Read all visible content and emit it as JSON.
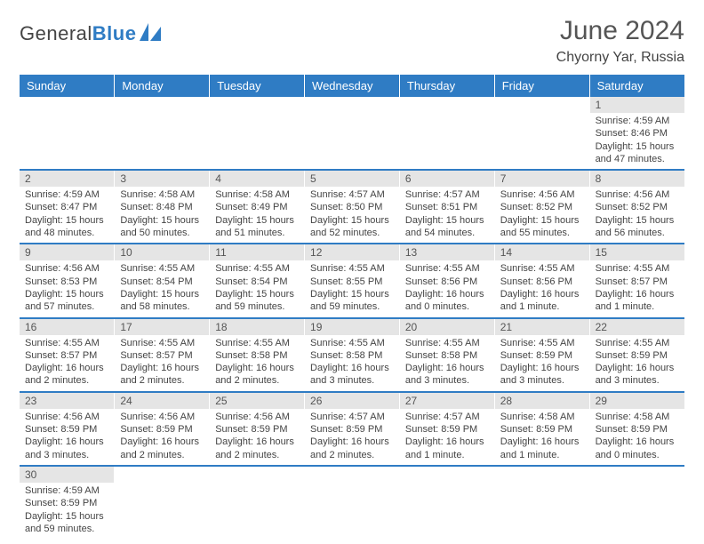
{
  "logo": {
    "word1": "General",
    "word2": "Blue"
  },
  "title": "June 2024",
  "location": "Chyorny Yar, Russia",
  "colors": {
    "accent": "#2f7cc4",
    "header_bg": "#2f7cc4",
    "daynum_bg": "#e5e5e5"
  },
  "weekdays": [
    "Sunday",
    "Monday",
    "Tuesday",
    "Wednesday",
    "Thursday",
    "Friday",
    "Saturday"
  ],
  "weeks": [
    [
      {
        "n": "",
        "sr": "",
        "ss": "",
        "dl": ""
      },
      {
        "n": "",
        "sr": "",
        "ss": "",
        "dl": ""
      },
      {
        "n": "",
        "sr": "",
        "ss": "",
        "dl": ""
      },
      {
        "n": "",
        "sr": "",
        "ss": "",
        "dl": ""
      },
      {
        "n": "",
        "sr": "",
        "ss": "",
        "dl": ""
      },
      {
        "n": "",
        "sr": "",
        "ss": "",
        "dl": ""
      },
      {
        "n": "1",
        "sr": "Sunrise: 4:59 AM",
        "ss": "Sunset: 8:46 PM",
        "dl": "Daylight: 15 hours and 47 minutes."
      }
    ],
    [
      {
        "n": "2",
        "sr": "Sunrise: 4:59 AM",
        "ss": "Sunset: 8:47 PM",
        "dl": "Daylight: 15 hours and 48 minutes."
      },
      {
        "n": "3",
        "sr": "Sunrise: 4:58 AM",
        "ss": "Sunset: 8:48 PM",
        "dl": "Daylight: 15 hours and 50 minutes."
      },
      {
        "n": "4",
        "sr": "Sunrise: 4:58 AM",
        "ss": "Sunset: 8:49 PM",
        "dl": "Daylight: 15 hours and 51 minutes."
      },
      {
        "n": "5",
        "sr": "Sunrise: 4:57 AM",
        "ss": "Sunset: 8:50 PM",
        "dl": "Daylight: 15 hours and 52 minutes."
      },
      {
        "n": "6",
        "sr": "Sunrise: 4:57 AM",
        "ss": "Sunset: 8:51 PM",
        "dl": "Daylight: 15 hours and 54 minutes."
      },
      {
        "n": "7",
        "sr": "Sunrise: 4:56 AM",
        "ss": "Sunset: 8:52 PM",
        "dl": "Daylight: 15 hours and 55 minutes."
      },
      {
        "n": "8",
        "sr": "Sunrise: 4:56 AM",
        "ss": "Sunset: 8:52 PM",
        "dl": "Daylight: 15 hours and 56 minutes."
      }
    ],
    [
      {
        "n": "9",
        "sr": "Sunrise: 4:56 AM",
        "ss": "Sunset: 8:53 PM",
        "dl": "Daylight: 15 hours and 57 minutes."
      },
      {
        "n": "10",
        "sr": "Sunrise: 4:55 AM",
        "ss": "Sunset: 8:54 PM",
        "dl": "Daylight: 15 hours and 58 minutes."
      },
      {
        "n": "11",
        "sr": "Sunrise: 4:55 AM",
        "ss": "Sunset: 8:54 PM",
        "dl": "Daylight: 15 hours and 59 minutes."
      },
      {
        "n": "12",
        "sr": "Sunrise: 4:55 AM",
        "ss": "Sunset: 8:55 PM",
        "dl": "Daylight: 15 hours and 59 minutes."
      },
      {
        "n": "13",
        "sr": "Sunrise: 4:55 AM",
        "ss": "Sunset: 8:56 PM",
        "dl": "Daylight: 16 hours and 0 minutes."
      },
      {
        "n": "14",
        "sr": "Sunrise: 4:55 AM",
        "ss": "Sunset: 8:56 PM",
        "dl": "Daylight: 16 hours and 1 minute."
      },
      {
        "n": "15",
        "sr": "Sunrise: 4:55 AM",
        "ss": "Sunset: 8:57 PM",
        "dl": "Daylight: 16 hours and 1 minute."
      }
    ],
    [
      {
        "n": "16",
        "sr": "Sunrise: 4:55 AM",
        "ss": "Sunset: 8:57 PM",
        "dl": "Daylight: 16 hours and 2 minutes."
      },
      {
        "n": "17",
        "sr": "Sunrise: 4:55 AM",
        "ss": "Sunset: 8:57 PM",
        "dl": "Daylight: 16 hours and 2 minutes."
      },
      {
        "n": "18",
        "sr": "Sunrise: 4:55 AM",
        "ss": "Sunset: 8:58 PM",
        "dl": "Daylight: 16 hours and 2 minutes."
      },
      {
        "n": "19",
        "sr": "Sunrise: 4:55 AM",
        "ss": "Sunset: 8:58 PM",
        "dl": "Daylight: 16 hours and 3 minutes."
      },
      {
        "n": "20",
        "sr": "Sunrise: 4:55 AM",
        "ss": "Sunset: 8:58 PM",
        "dl": "Daylight: 16 hours and 3 minutes."
      },
      {
        "n": "21",
        "sr": "Sunrise: 4:55 AM",
        "ss": "Sunset: 8:59 PM",
        "dl": "Daylight: 16 hours and 3 minutes."
      },
      {
        "n": "22",
        "sr": "Sunrise: 4:55 AM",
        "ss": "Sunset: 8:59 PM",
        "dl": "Daylight: 16 hours and 3 minutes."
      }
    ],
    [
      {
        "n": "23",
        "sr": "Sunrise: 4:56 AM",
        "ss": "Sunset: 8:59 PM",
        "dl": "Daylight: 16 hours and 3 minutes."
      },
      {
        "n": "24",
        "sr": "Sunrise: 4:56 AM",
        "ss": "Sunset: 8:59 PM",
        "dl": "Daylight: 16 hours and 2 minutes."
      },
      {
        "n": "25",
        "sr": "Sunrise: 4:56 AM",
        "ss": "Sunset: 8:59 PM",
        "dl": "Daylight: 16 hours and 2 minutes."
      },
      {
        "n": "26",
        "sr": "Sunrise: 4:57 AM",
        "ss": "Sunset: 8:59 PM",
        "dl": "Daylight: 16 hours and 2 minutes."
      },
      {
        "n": "27",
        "sr": "Sunrise: 4:57 AM",
        "ss": "Sunset: 8:59 PM",
        "dl": "Daylight: 16 hours and 1 minute."
      },
      {
        "n": "28",
        "sr": "Sunrise: 4:58 AM",
        "ss": "Sunset: 8:59 PM",
        "dl": "Daylight: 16 hours and 1 minute."
      },
      {
        "n": "29",
        "sr": "Sunrise: 4:58 AM",
        "ss": "Sunset: 8:59 PM",
        "dl": "Daylight: 16 hours and 0 minutes."
      }
    ],
    [
      {
        "n": "30",
        "sr": "Sunrise: 4:59 AM",
        "ss": "Sunset: 8:59 PM",
        "dl": "Daylight: 15 hours and 59 minutes."
      },
      {
        "n": "",
        "sr": "",
        "ss": "",
        "dl": ""
      },
      {
        "n": "",
        "sr": "",
        "ss": "",
        "dl": ""
      },
      {
        "n": "",
        "sr": "",
        "ss": "",
        "dl": ""
      },
      {
        "n": "",
        "sr": "",
        "ss": "",
        "dl": ""
      },
      {
        "n": "",
        "sr": "",
        "ss": "",
        "dl": ""
      },
      {
        "n": "",
        "sr": "",
        "ss": "",
        "dl": ""
      }
    ]
  ]
}
